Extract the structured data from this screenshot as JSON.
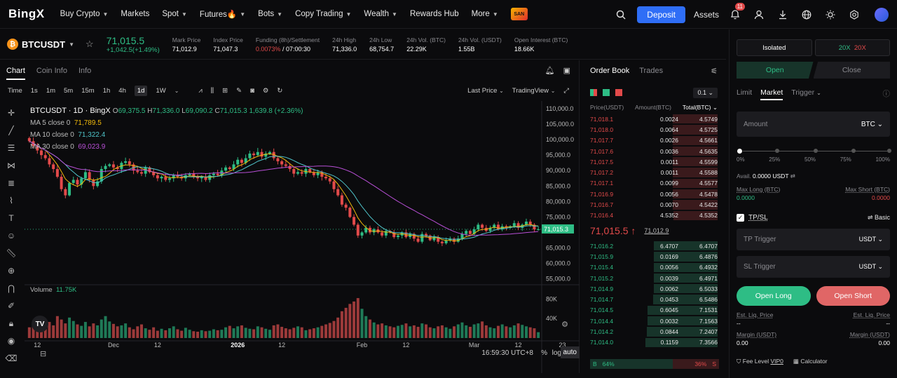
{
  "nav": {
    "logo": "BingX",
    "items": [
      {
        "label": "Buy Crypto",
        "caret": true
      },
      {
        "label": "Markets",
        "caret": false
      },
      {
        "label": "Spot",
        "caret": true
      },
      {
        "label": "Futures🔥",
        "caret": true
      },
      {
        "label": "Bots",
        "caret": true
      },
      {
        "label": "Copy Trading",
        "caret": true
      },
      {
        "label": "Wealth",
        "caret": true
      },
      {
        "label": "Rewards Hub",
        "caret": false
      },
      {
        "label": "More",
        "caret": true
      }
    ],
    "deposit": "Deposit",
    "assets": "Assets",
    "notif_count": "11",
    "icons": [
      "search-icon",
      "bell-icon",
      "user-icon",
      "download-icon",
      "globe-icon",
      "theme-icon",
      "settings-icon"
    ]
  },
  "ticker": {
    "pair": "BTCUSDT",
    "last": "71,015.5",
    "change": "+1,042.5(+1.49%)",
    "stats": [
      {
        "label": "Mark Price",
        "value": "71,012.9",
        "color": "white"
      },
      {
        "label": "Index Price",
        "value": "71,047.3",
        "color": "white"
      },
      {
        "label": "Funding (8h)/Settlement",
        "value": "0.0073%",
        "value2": " / 07:00:30",
        "color": "red"
      },
      {
        "label": "24h High",
        "value": "71,336.0",
        "color": "white"
      },
      {
        "label": "24h Low",
        "value": "68,754.7",
        "color": "white"
      },
      {
        "label": "24h Vol. (BTC)",
        "value": "22.29K",
        "color": "white"
      },
      {
        "label": "24h Vol. (USDT)",
        "value": "1.55B",
        "color": "white"
      },
      {
        "label": "Open Interest (BTC)",
        "value": "18.66K",
        "color": "white"
      }
    ]
  },
  "chart_tabs": [
    "Chart",
    "Coin Info",
    "Info"
  ],
  "timeframes": [
    "Time",
    "1s",
    "1m",
    "5m",
    "15m",
    "1h",
    "4h",
    "1d",
    "1W"
  ],
  "active_tf": "1d",
  "price_mode": "Last Price",
  "view_mode": "TradingView",
  "legend": {
    "title": "BTCUSDT · 1D · BingX",
    "o": "69,375.5",
    "h": "71,336.0",
    "l": "69,090.2",
    "c": "71,015.3",
    "chg": "1,639.8 (+2.36%)",
    "ma5_label": "MA 5 close 0",
    "ma5": "71,789.5",
    "ma10_label": "MA 10 close 0",
    "ma10": "71,322.4",
    "ma30_label": "MA 30 close 0",
    "ma30": "69,023.9",
    "volume_label": "Volume",
    "volume": "11.75K"
  },
  "colors": {
    "up": "#2ebd85",
    "down": "#e24a4a",
    "ma5": "#f0b90b",
    "ma10": "#4fc3c9",
    "ma30": "#b84fd6"
  },
  "chart_data": {
    "type": "candlestick",
    "price_ticks": [
      "110,000.0",
      "105,000.0",
      "100,000.0",
      "95,000.0",
      "90,000.0",
      "85,000.0",
      "80,000.0",
      "75,000.0",
      "65,000.0",
      "60,000.0",
      "55,000.0"
    ],
    "price_tick_values": [
      110000,
      105000,
      100000,
      95000,
      90000,
      85000,
      80000,
      75000,
      65000,
      60000,
      55000
    ],
    "ylim": [
      54000,
      112500
    ],
    "current_price": "71,015.3",
    "current_value": 71015.3,
    "volume_ticks": [
      "80K",
      "40K"
    ],
    "volume_tick_values": [
      80000,
      40000
    ],
    "x_ticks": [
      {
        "label": "12",
        "i": 2
      },
      {
        "label": "Dec",
        "i": 21
      },
      {
        "label": "12",
        "i": 32
      },
      {
        "label": "2026",
        "i": 52
      },
      {
        "label": "12",
        "i": 63
      },
      {
        "label": "Feb",
        "i": 83
      },
      {
        "label": "12",
        "i": 94
      },
      {
        "label": "Mar",
        "i": 111
      },
      {
        "label": "12",
        "i": 122
      },
      {
        "label": "23",
        "i": 133
      }
    ],
    "candle_count": 128,
    "closes": [
      99500,
      98000,
      96500,
      95000,
      94000,
      92000,
      90500,
      88000,
      84000,
      82000,
      86000,
      87000,
      85500,
      87500,
      89500,
      87000,
      85000,
      86500,
      90500,
      91500,
      92000,
      91000,
      90500,
      92500,
      93000,
      92000,
      90000,
      89500,
      89000,
      91000,
      89500,
      88500,
      87500,
      88000,
      87000,
      87500,
      88500,
      88000,
      87500,
      88500,
      89000,
      88000,
      87500,
      88000,
      87000,
      88500,
      89000,
      88500,
      90000,
      91000,
      90500,
      92000,
      93500,
      92500,
      94000,
      95500,
      95000,
      96000,
      94500,
      95500,
      96000,
      94000,
      93000,
      92000,
      91500,
      90500,
      89000,
      89500,
      89000,
      90500,
      89500,
      88500,
      89500,
      88000,
      87500,
      86500,
      84000,
      82000,
      79000,
      78000,
      75000,
      72500,
      69000,
      70000,
      71500,
      70000,
      71000,
      70000,
      69000,
      70500,
      70000,
      68500,
      69000,
      70000,
      68500,
      69500,
      68000,
      67000,
      69500,
      69000,
      67500,
      68500,
      67000,
      66500,
      67500,
      68000,
      67000,
      68000,
      69500,
      70500,
      69500,
      71000,
      72500,
      71500,
      70500,
      71500,
      72500,
      71000,
      72000,
      71500,
      72000,
      73000,
      71500,
      72500,
      73500,
      72500,
      71000,
      71015
    ],
    "highs_pct": 1.2,
    "volumes_k": [
      22,
      30,
      40,
      35,
      28,
      33,
      26,
      45,
      38,
      30,
      42,
      35,
      28,
      25,
      33,
      24,
      30,
      26,
      38,
      45,
      34,
      29,
      24,
      26,
      30,
      22,
      18,
      24,
      28,
      20,
      17,
      22,
      15,
      19,
      16,
      20,
      24,
      18,
      15,
      21,
      17,
      14,
      13,
      16,
      14,
      15,
      18,
      16,
      17,
      22,
      25,
      20,
      24,
      26,
      21,
      19,
      18,
      24,
      22,
      19,
      17,
      26,
      28,
      23,
      20,
      18,
      21,
      24,
      22,
      16,
      18,
      20,
      22,
      25,
      28,
      31,
      35,
      42,
      55,
      62,
      70,
      75,
      82,
      60,
      45,
      38,
      32,
      28,
      30,
      26,
      24,
      22,
      25,
      27,
      30,
      24,
      26,
      23,
      30,
      28,
      22,
      20,
      24,
      26,
      22,
      19,
      24,
      28,
      32,
      26,
      23,
      28,
      30,
      34,
      26,
      22,
      20,
      25,
      28,
      24,
      22,
      26,
      30,
      27,
      24,
      22,
      20,
      12
    ]
  },
  "bottom": {
    "time": "16:59:30 UTC+8",
    "pct": "%",
    "log": "log",
    "auto": "auto"
  },
  "orderbook": {
    "tabs": [
      "Order Book",
      "Trades"
    ],
    "step": "0.1",
    "head": {
      "price": "Price(USDT)",
      "amount": "Amount(BTC)",
      "total": "Total(BTC)"
    },
    "asks": [
      {
        "p": "71,018.1",
        "a": "0.0024",
        "t": "4.5749"
      },
      {
        "p": "71,018.0",
        "a": "0.0064",
        "t": "4.5725"
      },
      {
        "p": "71,017.7",
        "a": "0.0026",
        "t": "4.5661"
      },
      {
        "p": "71,017.6",
        "a": "0.0036",
        "t": "4.5635"
      },
      {
        "p": "71,017.5",
        "a": "0.0011",
        "t": "4.5599"
      },
      {
        "p": "71,017.2",
        "a": "0.0011",
        "t": "4.5588"
      },
      {
        "p": "71,017.1",
        "a": "0.0099",
        "t": "4.5577"
      },
      {
        "p": "71,016.9",
        "a": "0.0056",
        "t": "4.5478"
      },
      {
        "p": "71,016.7",
        "a": "0.0070",
        "t": "4.5422"
      },
      {
        "p": "71,016.4",
        "a": "4.5352",
        "t": "4.5352"
      }
    ],
    "mid_price": "71,015.5",
    "mid_arrow": "↑",
    "mark_price": "71,012.9",
    "bids": [
      {
        "p": "71,016.2",
        "a": "6.4707",
        "t": "6.4707"
      },
      {
        "p": "71,015.9",
        "a": "0.0169",
        "t": "6.4876"
      },
      {
        "p": "71,015.4",
        "a": "0.0056",
        "t": "6.4932"
      },
      {
        "p": "71,015.2",
        "a": "0.0039",
        "t": "6.4971"
      },
      {
        "p": "71,014.9",
        "a": "0.0062",
        "t": "6.5033"
      },
      {
        "p": "71,014.7",
        "a": "0.0453",
        "t": "6.5486"
      },
      {
        "p": "71,014.5",
        "a": "0.6045",
        "t": "7.1531"
      },
      {
        "p": "71,014.4",
        "a": "0.0032",
        "t": "7.1563"
      },
      {
        "p": "71,014.2",
        "a": "0.0844",
        "t": "7.2407"
      },
      {
        "p": "71,014.0",
        "a": "0.1159",
        "t": "7.3566"
      }
    ],
    "buy_label": "B",
    "buy_pct": "64%",
    "sell_pct": "36%",
    "sell_label": "S",
    "buy_ratio": 0.64
  },
  "trade": {
    "margin_mode": "Isolated",
    "lev_long": "20X",
    "lev_short": "20X",
    "open": "Open",
    "close": "Close",
    "types": [
      "Limit",
      "Market",
      "Trigger"
    ],
    "active_type": "Market",
    "amount_placeholder": "Amount",
    "amount_unit": "BTC",
    "marks": [
      "0%",
      "25%",
      "50%",
      "75%",
      "100%"
    ],
    "avail_label": "Avail.",
    "avail_value": "0.0000 USDT",
    "max_long_label": "Max Long (BTC)",
    "max_long": "0.0000",
    "max_short_label": "Max Short (BTC)",
    "max_short": "0.0000",
    "tpsl": "TP/SL",
    "basic": "Basic",
    "tp": "TP Trigger",
    "sl": "SL Trigger",
    "unit": "USDT",
    "open_long": "Open Long",
    "open_short": "Open Short",
    "liq_label": "Est. Liq. Price",
    "liq_value": "--",
    "margin_label": "Margin (USDT)",
    "margin_value": "0.00",
    "fee": "Fee Level",
    "vip": "VIP0",
    "calc": "Calculator"
  }
}
